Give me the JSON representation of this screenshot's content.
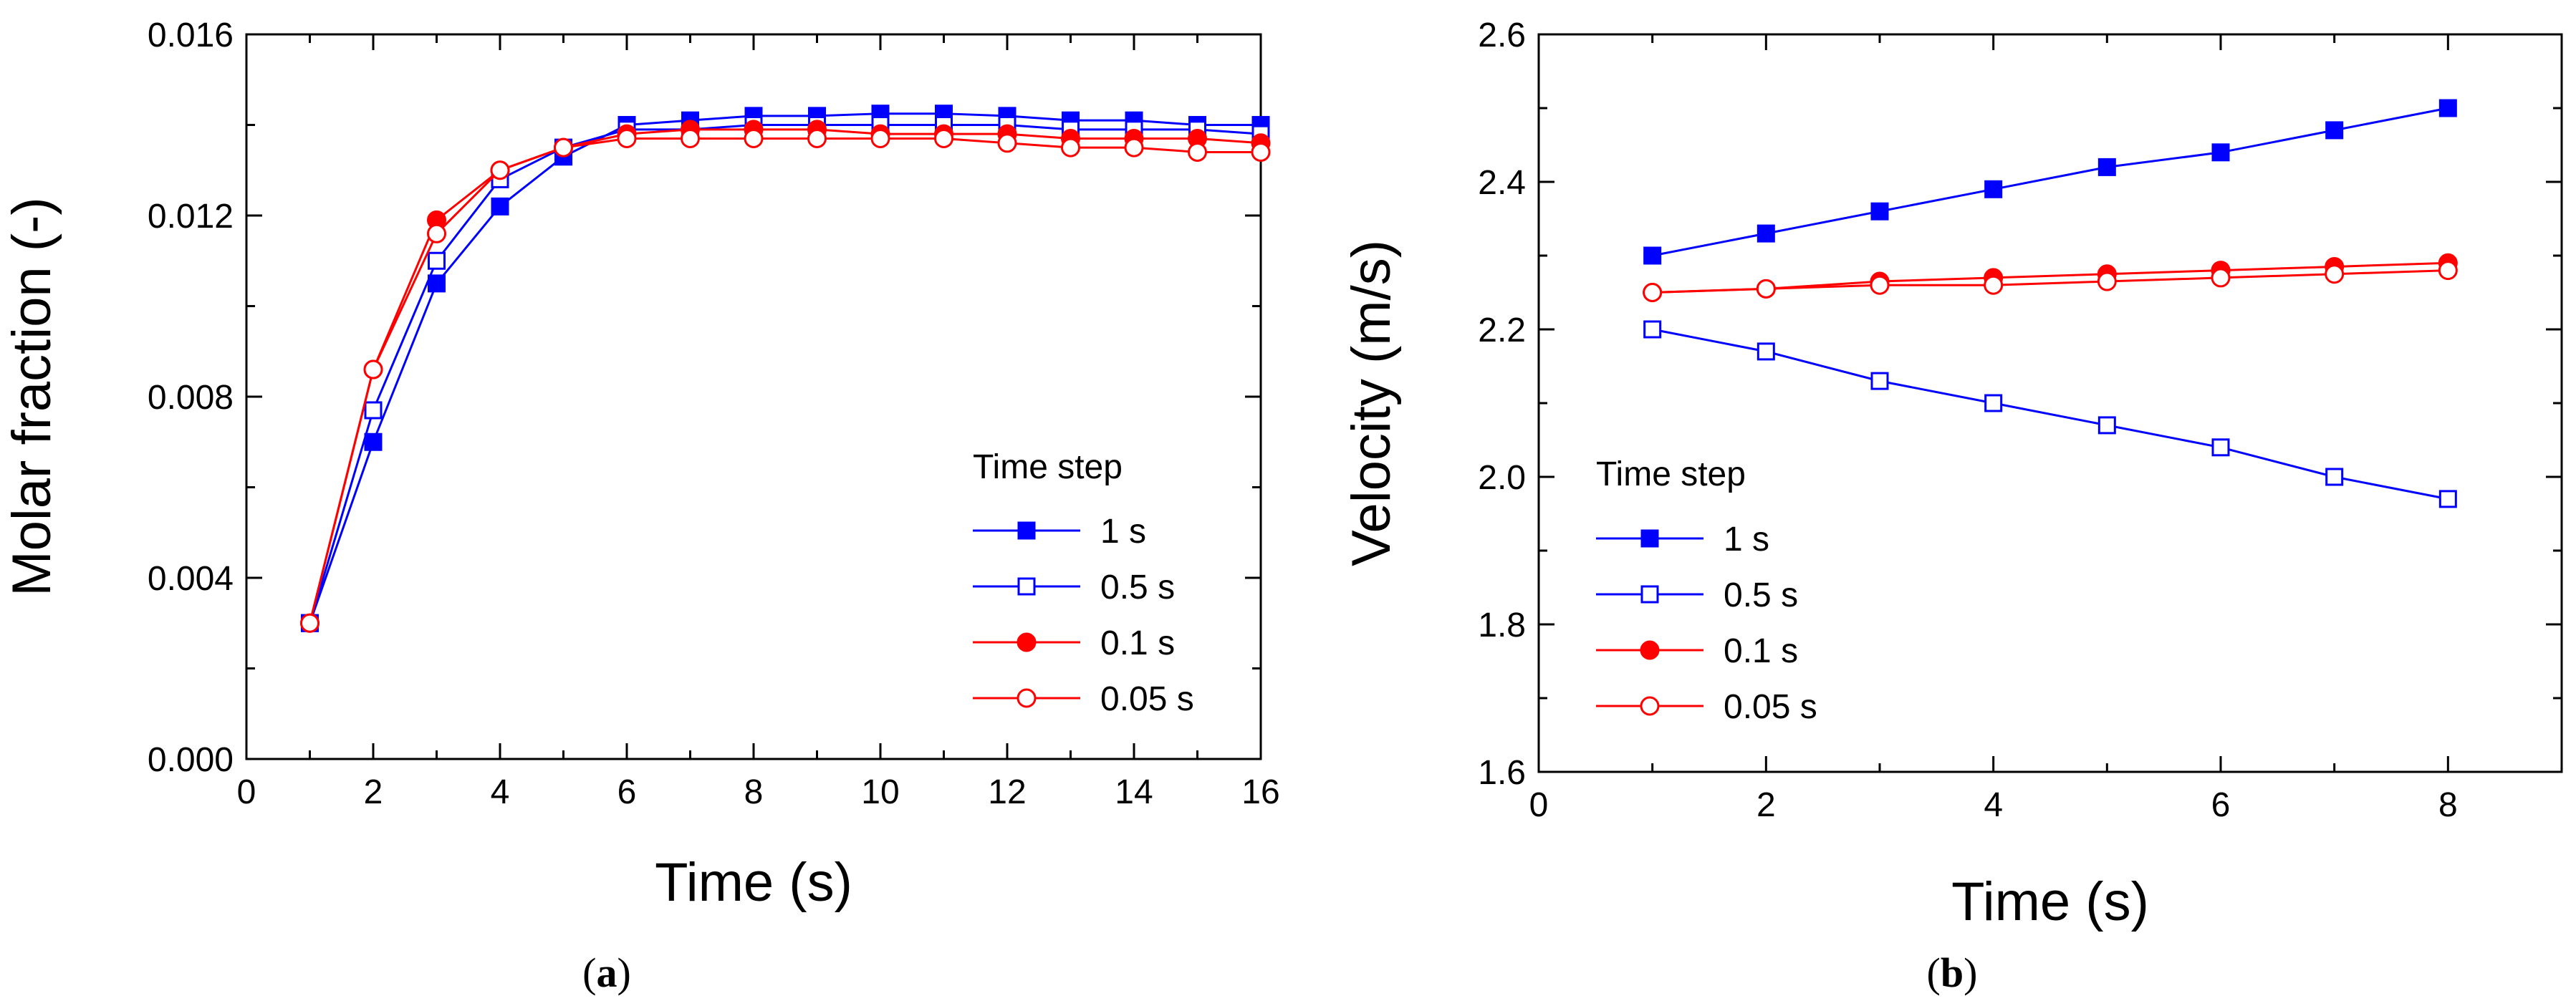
{
  "chart_data": [
    {
      "type": "line",
      "panel_label": "a",
      "xlabel": "Time (s)",
      "ylabel": "Molar fraction (-)",
      "xlim": [
        0,
        16
      ],
      "ylim": [
        0,
        0.016
      ],
      "xticks": [
        0,
        2,
        4,
        6,
        8,
        10,
        12,
        14,
        16
      ],
      "yticks": [
        0.0,
        0.004,
        0.008,
        0.012,
        0.016
      ],
      "ytick_labels": [
        "0.000",
        "0.004",
        "0.008",
        "0.012",
        "0.016"
      ],
      "legend_title": "Time step",
      "legend_position": "center-right",
      "x": [
        1,
        2,
        3,
        4,
        5,
        6,
        7,
        8,
        9,
        10,
        11,
        12,
        13,
        14,
        15,
        16
      ],
      "series": [
        {
          "name": "1 s",
          "color": "#0000FF",
          "marker": "square-filled",
          "values": [
            0.003,
            0.007,
            0.0105,
            0.0122,
            0.0133,
            0.014,
            0.0141,
            0.0142,
            0.0142,
            0.01425,
            0.01425,
            0.0142,
            0.0141,
            0.0141,
            0.014,
            0.014
          ]
        },
        {
          "name": "0.5 s",
          "color": "#0000FF",
          "marker": "square-open",
          "values": [
            0.003,
            0.0077,
            0.011,
            0.0128,
            0.0135,
            0.0139,
            0.0139,
            0.014,
            0.014,
            0.014,
            0.014,
            0.014,
            0.0139,
            0.0139,
            0.0139,
            0.0138
          ]
        },
        {
          "name": "0.1 s",
          "color": "#FF0000",
          "marker": "circle-filled",
          "values": [
            0.003,
            0.0086,
            0.0119,
            0.013,
            0.0135,
            0.0138,
            0.0139,
            0.0139,
            0.0139,
            0.0138,
            0.0138,
            0.0138,
            0.0137,
            0.0137,
            0.0137,
            0.0136
          ]
        },
        {
          "name": "0.05 s",
          "color": "#FF0000",
          "marker": "circle-open",
          "values": [
            0.003,
            0.0086,
            0.0116,
            0.013,
            0.0135,
            0.0137,
            0.0137,
            0.0137,
            0.0137,
            0.0137,
            0.0137,
            0.0136,
            0.0135,
            0.0135,
            0.0134,
            0.0134
          ]
        }
      ]
    },
    {
      "type": "line",
      "panel_label": "b",
      "xlabel": "Time (s)",
      "ylabel": "Velocity (m/s)",
      "xlim": [
        0,
        9
      ],
      "ylim": [
        1.6,
        2.6
      ],
      "xticks": [
        0,
        2,
        4,
        6,
        8
      ],
      "yticks": [
        1.6,
        1.8,
        2.0,
        2.2,
        2.4,
        2.6
      ],
      "ytick_labels": [
        "1.6",
        "1.8",
        "2.0",
        "2.2",
        "2.4",
        "2.6"
      ],
      "legend_title": "Time step",
      "legend_position": "lower-left",
      "x": [
        1,
        2,
        3,
        4,
        5,
        6,
        7,
        8
      ],
      "series": [
        {
          "name": "1 s",
          "color": "#0000FF",
          "marker": "square-filled",
          "values": [
            2.3,
            2.33,
            2.36,
            2.39,
            2.42,
            2.44,
            2.47,
            2.5
          ]
        },
        {
          "name": "0.5 s",
          "color": "#0000FF",
          "marker": "square-open",
          "values": [
            2.2,
            2.17,
            2.13,
            2.1,
            2.07,
            2.04,
            2.0,
            1.97
          ]
        },
        {
          "name": "0.1 s",
          "color": "#FF0000",
          "marker": "circle-filled",
          "values": [
            2.25,
            2.255,
            2.265,
            2.27,
            2.275,
            2.28,
            2.285,
            2.29
          ]
        },
        {
          "name": "0.05 s",
          "color": "#FF0000",
          "marker": "circle-open",
          "values": [
            2.25,
            2.255,
            2.26,
            2.26,
            2.265,
            2.27,
            2.275,
            2.28
          ]
        }
      ]
    }
  ],
  "captions": [
    "a",
    "b"
  ]
}
